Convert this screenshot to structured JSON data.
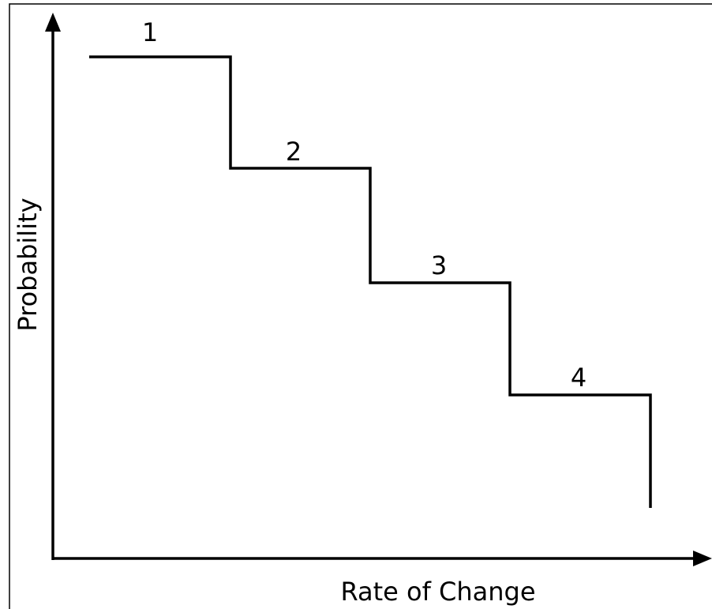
{
  "axes": {
    "y_label": "Probability",
    "x_label": "Rate of Change"
  },
  "steps": [
    {
      "label": "1"
    },
    {
      "label": "2"
    },
    {
      "label": "3"
    },
    {
      "label": "4"
    }
  ]
}
